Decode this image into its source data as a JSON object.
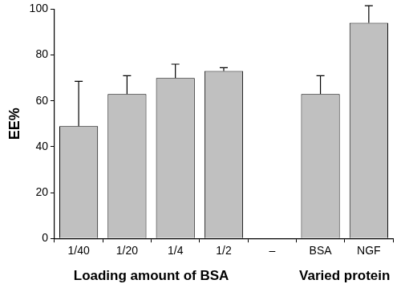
{
  "chart_data": {
    "type": "bar",
    "ylabel": "EE%",
    "categories": [
      "1/40",
      "1/20",
      "1/4",
      "1/2",
      "–",
      "BSA",
      "NGF"
    ],
    "values": [
      49,
      63,
      70,
      73,
      null,
      63,
      94
    ],
    "errors": [
      19.5,
      8,
      6,
      1.5,
      null,
      8,
      7.5
    ],
    "color": "#c0c0c0",
    "ylim": [
      0,
      100
    ],
    "yticks": [
      0,
      20,
      40,
      60,
      80,
      100
    ],
    "grid": false,
    "annotations": [
      {
        "text": "Loading amount of BSA",
        "categories": [
          "1/40",
          "1/20",
          "1/4",
          "1/2"
        ]
      },
      {
        "text": "Varied protein",
        "categories": [
          "BSA",
          "NGF"
        ]
      }
    ]
  }
}
